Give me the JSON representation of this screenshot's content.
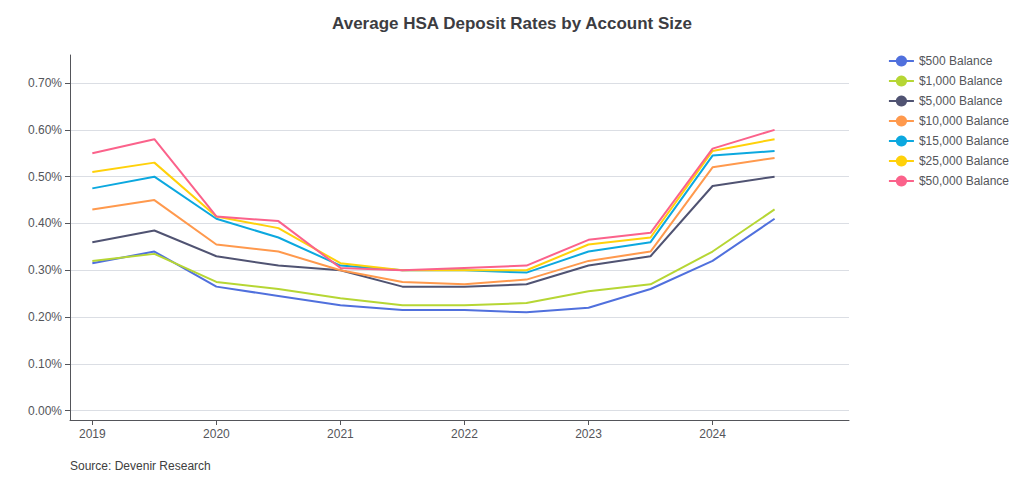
{
  "chart_data": {
    "type": "line",
    "title": "Average HSA Deposit Rates by Account Size",
    "annotations": [
      "Source: Devenir Research"
    ],
    "x": [
      2019,
      2019.5,
      2020,
      2020.5,
      2021,
      2021.5,
      2022,
      2022.5,
      2023,
      2023.5,
      2024,
      2024.5
    ],
    "series": [
      {
        "name": "$500 Balance",
        "values": [
          0.315,
          0.34,
          0.265,
          0.245,
          0.225,
          0.215,
          0.215,
          0.21,
          0.22,
          0.26,
          0.32,
          0.41
        ]
      },
      {
        "name": "$1,000 Balance",
        "values": [
          0.32,
          0.335,
          0.275,
          0.26,
          0.24,
          0.225,
          0.225,
          0.23,
          0.255,
          0.27,
          0.34,
          0.43
        ]
      },
      {
        "name": "$5,000 Balance",
        "values": [
          0.36,
          0.385,
          0.33,
          0.31,
          0.3,
          0.265,
          0.265,
          0.27,
          0.31,
          0.33,
          0.48,
          0.5
        ]
      },
      {
        "name": "$10,000 Balance",
        "values": [
          0.43,
          0.45,
          0.355,
          0.34,
          0.3,
          0.275,
          0.27,
          0.28,
          0.32,
          0.34,
          0.52,
          0.54
        ]
      },
      {
        "name": "$15,000 Balance",
        "values": [
          0.475,
          0.5,
          0.41,
          0.37,
          0.31,
          0.3,
          0.3,
          0.295,
          0.34,
          0.36,
          0.545,
          0.555
        ]
      },
      {
        "name": "$25,000 Balance",
        "values": [
          0.51,
          0.53,
          0.415,
          0.39,
          0.315,
          0.3,
          0.3,
          0.3,
          0.355,
          0.37,
          0.555,
          0.58
        ]
      },
      {
        "name": "$50,000 Balance",
        "values": [
          0.55,
          0.58,
          0.415,
          0.405,
          0.305,
          0.3,
          0.305,
          0.31,
          0.365,
          0.38,
          0.56,
          0.6
        ]
      }
    ],
    "xlim": [
      2018.82,
      2025.1
    ],
    "xticks": [
      2019,
      2020,
      2021,
      2022,
      2023,
      2024
    ],
    "ylim": [
      -0.02,
      0.76
    ],
    "yticks": [
      {
        "value": 0.0,
        "label": "0.00%"
      },
      {
        "value": 0.1,
        "label": "0.10%"
      },
      {
        "value": 0.2,
        "label": "0.20%"
      },
      {
        "value": 0.3,
        "label": "0.30%"
      },
      {
        "value": 0.4,
        "label": "0.40%"
      },
      {
        "value": 0.5,
        "label": "0.50%"
      },
      {
        "value": 0.6,
        "label": "0.60%"
      },
      {
        "value": 0.7,
        "label": "0.70%"
      }
    ],
    "grid": true,
    "legend": "right"
  }
}
